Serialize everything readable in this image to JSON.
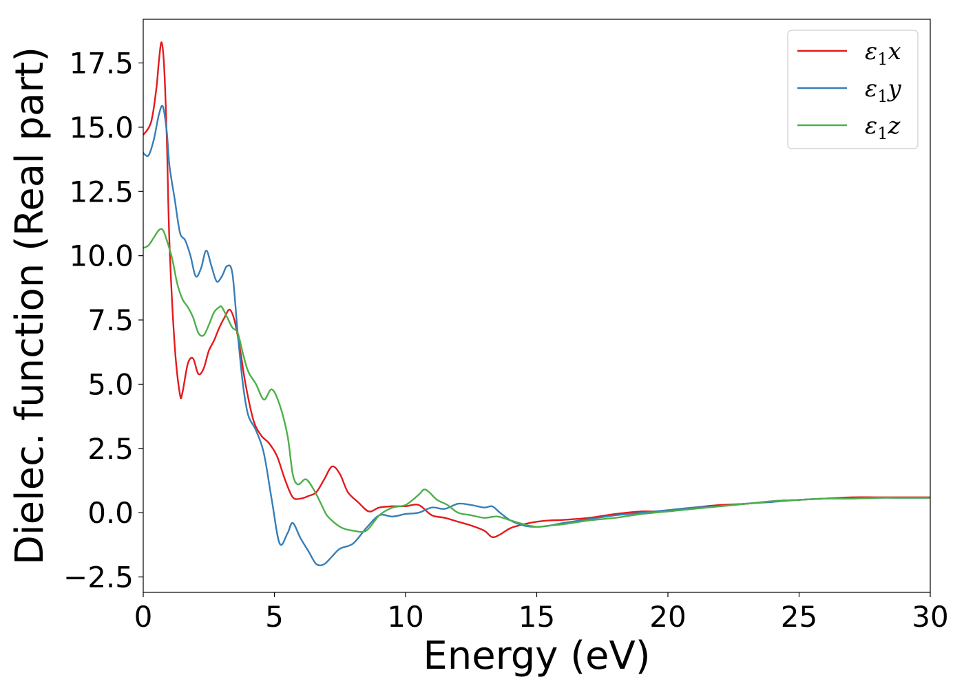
{
  "chart_data": {
    "type": "line",
    "title": "",
    "xlabel": "Energy (eV)",
    "ylabel": "Dielec. function (Real part)",
    "xlim": [
      0,
      30
    ],
    "ylim": [
      -3.1,
      19.2
    ],
    "xticks": [
      0,
      5,
      10,
      15,
      20,
      25,
      30
    ],
    "xtick_labels": [
      "0",
      "5",
      "10",
      "15",
      "20",
      "25",
      "30"
    ],
    "yticks": [
      -2.5,
      0.0,
      2.5,
      5.0,
      7.5,
      10.0,
      12.5,
      15.0,
      17.5
    ],
    "ytick_labels": [
      "−2.5",
      "0.0",
      "2.5",
      "5.0",
      "7.5",
      "10.0",
      "12.5",
      "15.0",
      "17.5"
    ],
    "grid": false,
    "legend_position": "top-right",
    "series": [
      {
        "name": "ε₁x",
        "legend_main": "ε",
        "legend_sub": "1",
        "legend_tail": "x",
        "color": "#e41a1c",
        "x": [
          0,
          0.3,
          0.5,
          0.6,
          0.7,
          0.8,
          0.9,
          1.0,
          1.2,
          1.4,
          1.5,
          1.7,
          1.9,
          2.1,
          2.3,
          2.5,
          2.7,
          2.9,
          3.1,
          3.3,
          3.5,
          3.7,
          3.9,
          4.2,
          4.5,
          4.8,
          5.1,
          5.4,
          5.7,
          6.0,
          6.3,
          6.6,
          6.9,
          7.2,
          7.5,
          7.8,
          8.2,
          8.6,
          9.0,
          9.5,
          10.0,
          10.5,
          11.0,
          11.5,
          12.0,
          12.5,
          13.0,
          13.3,
          13.6,
          14.0,
          14.5,
          15.0,
          15.5,
          16.0,
          17.0,
          18.0,
          19.0,
          20.0,
          21.0,
          22.0,
          23.0,
          24.0,
          25.0,
          26.0,
          27.0,
          28.0,
          29.0,
          30.0
        ],
        "y": [
          14.7,
          15.2,
          16.5,
          17.6,
          18.3,
          17.3,
          14.5,
          10.5,
          6.5,
          4.6,
          4.7,
          5.8,
          6.0,
          5.4,
          5.6,
          6.3,
          6.7,
          7.2,
          7.6,
          7.9,
          7.4,
          6.3,
          5.0,
          3.6,
          3.0,
          2.7,
          2.2,
          1.3,
          0.6,
          0.55,
          0.65,
          0.8,
          1.3,
          1.8,
          1.5,
          0.8,
          0.4,
          0.05,
          0.2,
          0.25,
          0.25,
          0.3,
          -0.1,
          -0.2,
          -0.35,
          -0.5,
          -0.7,
          -0.95,
          -0.85,
          -0.6,
          -0.45,
          -0.35,
          -0.3,
          -0.28,
          -0.2,
          -0.05,
          0.05,
          0.05,
          0.2,
          0.3,
          0.35,
          0.45,
          0.5,
          0.55,
          0.6,
          0.6,
          0.6,
          0.6
        ]
      },
      {
        "name": "ε₁y",
        "legend_main": "ε",
        "legend_sub": "1",
        "legend_tail": "y",
        "color": "#377eb8",
        "x": [
          0,
          0.2,
          0.4,
          0.6,
          0.75,
          0.9,
          1.0,
          1.2,
          1.4,
          1.6,
          1.8,
          2.0,
          2.2,
          2.4,
          2.6,
          2.8,
          3.0,
          3.2,
          3.4,
          3.6,
          3.8,
          4.0,
          4.3,
          4.6,
          4.9,
          5.2,
          5.5,
          5.7,
          6.0,
          6.3,
          6.6,
          6.9,
          7.2,
          7.5,
          8.0,
          8.5,
          9.0,
          9.5,
          10.0,
          10.5,
          11.0,
          11.5,
          12.0,
          12.5,
          13.0,
          13.3,
          13.6,
          14.0,
          14.5,
          15.0,
          15.5,
          16.0,
          17.0,
          18.0,
          19.0,
          20.0,
          21.0,
          22.0,
          23.0,
          24.0,
          25.0,
          26.0,
          27.0,
          28.0,
          29.0,
          30.0
        ],
        "y": [
          14.0,
          13.9,
          14.5,
          15.5,
          15.8,
          14.8,
          13.5,
          12.2,
          10.9,
          10.6,
          10.0,
          9.2,
          9.5,
          10.2,
          9.6,
          9.0,
          9.2,
          9.6,
          9.3,
          7.0,
          5.0,
          3.8,
          3.2,
          2.3,
          0.5,
          -1.2,
          -0.8,
          -0.4,
          -1.0,
          -1.5,
          -2.0,
          -2.0,
          -1.7,
          -1.4,
          -1.2,
          -0.6,
          -0.1,
          -0.15,
          -0.05,
          0.0,
          0.2,
          0.15,
          0.35,
          0.3,
          0.2,
          0.25,
          0.0,
          -0.3,
          -0.5,
          -0.55,
          -0.5,
          -0.4,
          -0.25,
          -0.1,
          0.0,
          0.1,
          0.2,
          0.25,
          0.35,
          0.42,
          0.5,
          0.55,
          0.55,
          0.58,
          0.58,
          0.58
        ]
      },
      {
        "name": "ε₁z",
        "legend_main": "ε",
        "legend_sub": "1",
        "legend_tail": "z",
        "color": "#4daf4a",
        "x": [
          0,
          0.2,
          0.4,
          0.6,
          0.75,
          0.9,
          1.1,
          1.3,
          1.5,
          1.7,
          1.9,
          2.1,
          2.3,
          2.5,
          2.7,
          2.9,
          3.0,
          3.2,
          3.4,
          3.6,
          3.8,
          4.0,
          4.3,
          4.6,
          4.9,
          5.2,
          5.5,
          5.7,
          5.9,
          6.2,
          6.5,
          6.8,
          7.0,
          7.3,
          7.6,
          8.0,
          8.5,
          9.0,
          9.5,
          10.0,
          10.5,
          10.7,
          10.9,
          11.2,
          11.6,
          12.0,
          12.5,
          13.0,
          13.5,
          14.0,
          14.5,
          15.0,
          15.5,
          16.0,
          17.0,
          18.0,
          19.0,
          20.0,
          21.0,
          22.0,
          23.0,
          24.0,
          25.0,
          26.0,
          27.0,
          28.0,
          29.0,
          30.0
        ],
        "y": [
          10.3,
          10.4,
          10.7,
          11.0,
          11.0,
          10.6,
          9.9,
          8.9,
          8.3,
          8.0,
          7.6,
          7.0,
          6.9,
          7.3,
          7.8,
          8.0,
          8.0,
          7.6,
          7.2,
          7.0,
          6.2,
          5.5,
          5.0,
          4.4,
          4.8,
          4.2,
          3.0,
          1.5,
          1.1,
          1.3,
          0.9,
          0.3,
          -0.1,
          -0.4,
          -0.6,
          -0.7,
          -0.7,
          -0.1,
          0.2,
          0.3,
          0.7,
          0.9,
          0.8,
          0.5,
          0.3,
          0.0,
          -0.1,
          -0.2,
          -0.15,
          -0.3,
          -0.45,
          -0.55,
          -0.5,
          -0.45,
          -0.3,
          -0.2,
          -0.05,
          0.05,
          0.15,
          0.25,
          0.35,
          0.45,
          0.5,
          0.55,
          0.55,
          0.58,
          0.58,
          0.58
        ]
      }
    ]
  }
}
